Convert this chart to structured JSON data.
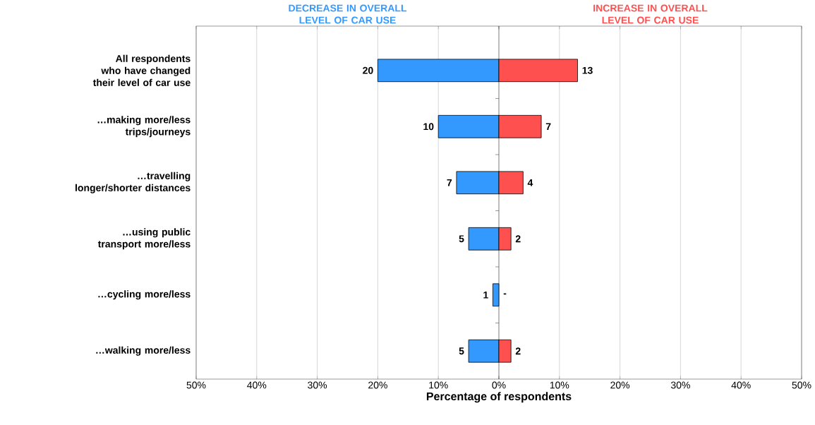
{
  "chart_data": {
    "type": "bar",
    "orientation": "horizontal",
    "xlabel": "Percentage of respondents",
    "categories": [
      "All respondents who have changed their level of car use",
      "…making more/less trips/journeys",
      "…travelling longer/shorter distances",
      "…using public transport more/less",
      "…cycling more/less",
      "…walking more/less"
    ],
    "series": [
      {
        "name": "DECREASE IN OVERALL LEVEL OF CAR USE",
        "color": "#3399ff",
        "base": [
          -20,
          -10,
          -7,
          -5,
          -1,
          -5
        ],
        "values": [
          20,
          10,
          7,
          5,
          1,
          5
        ],
        "value_labels": [
          "20",
          "10",
          "7",
          "5",
          "1",
          "5"
        ]
      },
      {
        "name": "INCREASE IN OVERALL LEVEL OF CAR USE",
        "color": "#ff5050",
        "values": [
          13,
          7,
          4,
          2,
          0,
          2
        ],
        "value_labels": [
          "13",
          "7",
          "4",
          "2",
          "-",
          "2"
        ]
      }
    ],
    "xlim": [
      -50,
      50
    ],
    "xticks": [
      {
        "value": -50,
        "label": "50%"
      },
      {
        "value": -40,
        "label": "40%"
      },
      {
        "value": -30,
        "label": "30%"
      },
      {
        "value": -20,
        "label": "20%"
      },
      {
        "value": -10,
        "label": "10%"
      },
      {
        "value": 0,
        "label": "0%"
      },
      {
        "value": 10,
        "label": "10%"
      },
      {
        "value": 20,
        "label": "20%"
      },
      {
        "value": 30,
        "label": "30%"
      },
      {
        "value": 40,
        "label": "40%"
      },
      {
        "value": 50,
        "label": "50%"
      }
    ],
    "grid": "x"
  }
}
